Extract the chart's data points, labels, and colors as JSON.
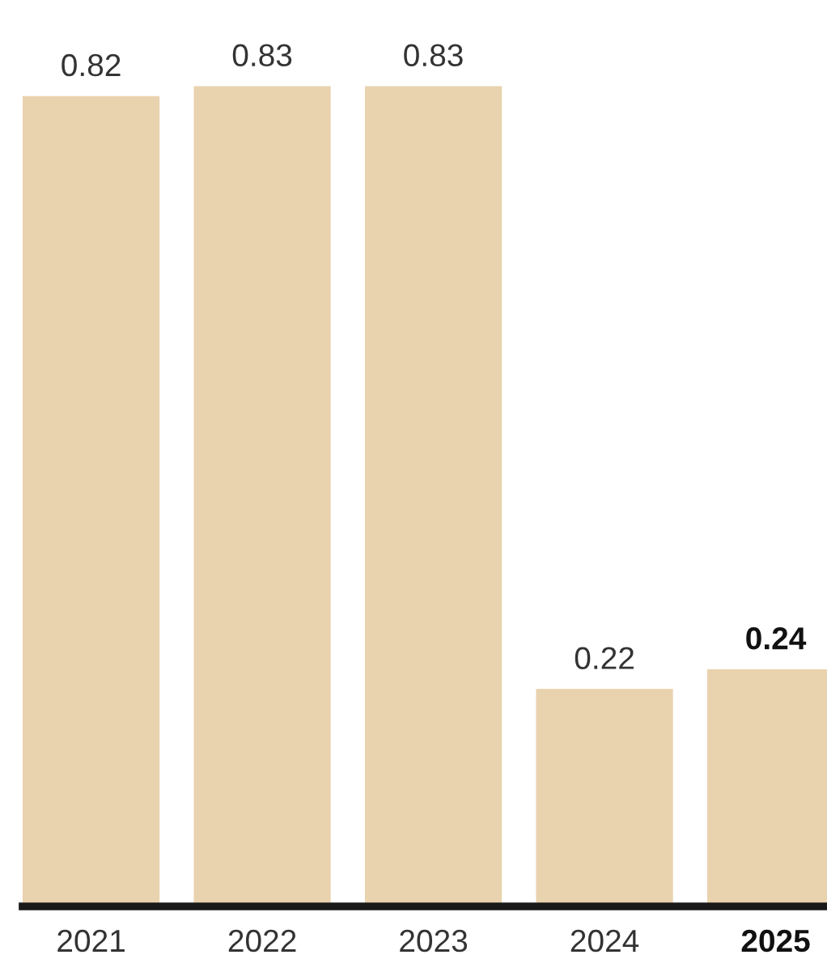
{
  "chart_data": {
    "type": "bar",
    "categories": [
      "2021",
      "2022",
      "2023",
      "2024",
      "2025"
    ],
    "values": [
      0.82,
      0.83,
      0.83,
      0.22,
      0.24
    ],
    "color": "#e9d2ae",
    "data_labels": true,
    "grid": false,
    "legend": false
  }
}
